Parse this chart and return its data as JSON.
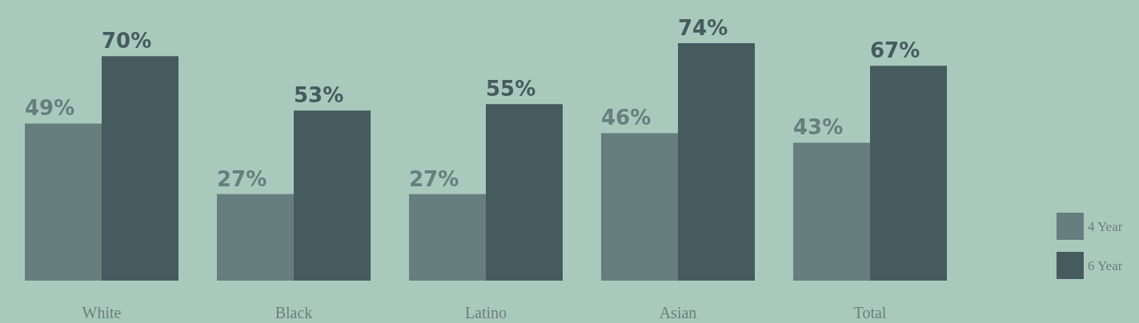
{
  "chart_data": {
    "type": "bar",
    "categories": [
      "White",
      "Black",
      "Latino",
      "Asian",
      "Total"
    ],
    "series": [
      {
        "name": "4 Year",
        "color": "#667f7e",
        "values": [
          49,
          27,
          27,
          46,
          43
        ],
        "value_labels": [
          "49%",
          "27%",
          "27%",
          "46%",
          "43%"
        ]
      },
      {
        "name": "6 Year",
        "color": "#465b5e",
        "values": [
          70,
          53,
          55,
          74,
          67
        ],
        "value_labels": [
          "70%",
          "53%",
          "55%",
          "74%",
          "67%"
        ]
      }
    ],
    "legend": "bottom right"
  }
}
